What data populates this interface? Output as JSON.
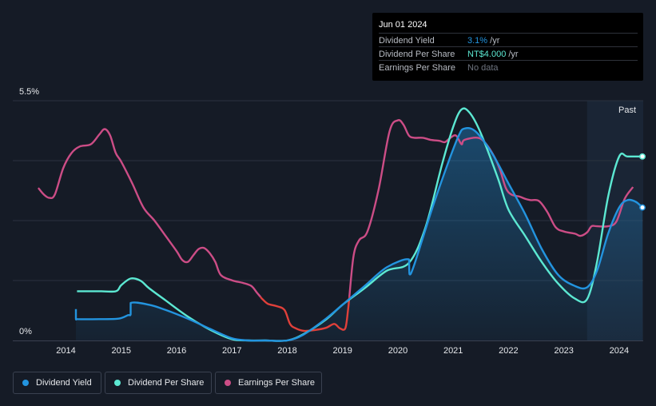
{
  "tooltip": {
    "date": "Jun 01 2024",
    "rows": [
      {
        "label": "Dividend Yield",
        "value": "3.1%",
        "unit": " /yr"
      },
      {
        "label": "Dividend Per Share",
        "value": "NT$4.000",
        "unit": " /yr"
      },
      {
        "label": "Earnings Per Share",
        "value": "No data",
        "unit": ""
      }
    ]
  },
  "colors": {
    "background": "#151b26",
    "dividend_yield": "#2394df",
    "dividend_per_share": "#5ce8d2",
    "earnings_per_share": "#cc4d86",
    "earnings_negative": "#e0403a",
    "past_region": "#1a2535"
  },
  "chart_data": {
    "type": "line",
    "title": "",
    "xlabel": "",
    "ylabel": "",
    "ylim": [
      0,
      5.5
    ],
    "xlim": [
      2013.5,
      2024.42
    ],
    "y_tick_labels": [
      "5.5%",
      "0%"
    ],
    "x_ticks": [
      2014,
      2015,
      2016,
      2017,
      2018,
      2019,
      2020,
      2021,
      2022,
      2023,
      2024
    ],
    "x_tick_labels": [
      "2014",
      "2015",
      "2016",
      "2017",
      "2018",
      "2019",
      "2020",
      "2021",
      "2022",
      "2023",
      "2024"
    ],
    "past_label": "Past",
    "past_start": 2023.42,
    "legend_position": "bottom-left",
    "series": [
      {
        "name": "Dividend Yield",
        "unit": "% yield",
        "x": [
          2014.18,
          2014.18,
          2014.2,
          2014.6,
          2014.95,
          2015.12,
          2015.17,
          2015.17,
          2015.5,
          2015.8,
          2016.2,
          2016.6,
          2017.0,
          2017.3,
          2017.6,
          2018.0,
          2018.3,
          2018.7,
          2019.0,
          2019.4,
          2019.8,
          2020.2,
          2020.21,
          2020.3,
          2020.6,
          2020.9,
          2021.1,
          2021.2,
          2021.4,
          2021.7,
          2022.0,
          2022.3,
          2022.6,
          2022.9,
          2023.2,
          2023.42,
          2023.6,
          2023.8,
          2024.0,
          2024.15,
          2024.3,
          2024.42
        ],
        "values": [
          0.72,
          0.5,
          0.49,
          0.49,
          0.5,
          0.58,
          0.6,
          0.86,
          0.82,
          0.7,
          0.5,
          0.27,
          0.05,
          0.0,
          0.0,
          0.0,
          0.14,
          0.5,
          0.82,
          1.25,
          1.68,
          1.86,
          1.52,
          1.75,
          2.95,
          4.05,
          4.7,
          4.86,
          4.8,
          4.3,
          3.6,
          2.9,
          2.1,
          1.5,
          1.25,
          1.22,
          1.6,
          2.45,
          3.05,
          3.22,
          3.18,
          3.05
        ]
      },
      {
        "name": "Dividend Per Share",
        "unit": "NT$",
        "x": [
          2014.2,
          2014.6,
          2014.9,
          2015.0,
          2015.17,
          2015.35,
          2015.5,
          2015.8,
          2016.2,
          2016.6,
          2017.0,
          2017.3,
          2017.6,
          2018.0,
          2018.3,
          2018.7,
          2019.0,
          2019.4,
          2019.8,
          2020.2,
          2020.5,
          2020.8,
          2021.0,
          2021.15,
          2021.3,
          2021.5,
          2021.8,
          2022.0,
          2022.3,
          2022.6,
          2022.9,
          2023.2,
          2023.42,
          2023.6,
          2023.8,
          2024.0,
          2024.15,
          2024.42
        ],
        "values": [
          1.13,
          1.13,
          1.13,
          1.27,
          1.42,
          1.37,
          1.2,
          0.92,
          0.55,
          0.25,
          0.03,
          0.0,
          0.0,
          0.0,
          0.15,
          0.48,
          0.82,
          1.2,
          1.6,
          1.78,
          2.6,
          4.05,
          4.9,
          5.3,
          5.22,
          4.75,
          3.75,
          3.0,
          2.4,
          1.8,
          1.3,
          0.96,
          0.95,
          1.8,
          3.3,
          4.22,
          4.22,
          4.22
        ]
      },
      {
        "name": "Earnings Per Share",
        "unit": "NT$",
        "x": [
          2013.5,
          2013.6,
          2013.7,
          2013.8,
          2013.95,
          2014.1,
          2014.25,
          2014.45,
          2014.6,
          2014.7,
          2014.8,
          2014.9,
          2015.0,
          2015.2,
          2015.4,
          2015.6,
          2015.8,
          2016.0,
          2016.1,
          2016.2,
          2016.3,
          2016.4,
          2016.5,
          2016.6,
          2016.7,
          2016.8,
          2017.0,
          2017.2,
          2017.35,
          2017.45,
          2017.55,
          2017.65,
          2017.8,
          2017.95,
          2018.05,
          2018.15,
          2018.3,
          2018.5,
          2018.7,
          2018.85,
          2018.95,
          2019.05,
          2019.1,
          2019.2,
          2019.3,
          2019.45,
          2019.65,
          2019.85,
          2020.0,
          2020.1,
          2020.2,
          2020.3,
          2020.45,
          2020.6,
          2020.75,
          2020.85,
          2020.95,
          2021.05,
          2021.15,
          2021.2,
          2021.45,
          2021.6,
          2021.75,
          2021.85,
          2021.95,
          2022.05,
          2022.2,
          2022.3,
          2022.4,
          2022.55,
          2022.7,
          2022.85,
          2023.0,
          2023.2,
          2023.3,
          2023.42,
          2023.5,
          2023.6,
          2023.8,
          2023.95,
          2024.1,
          2024.25
        ],
        "values": [
          3.5,
          3.35,
          3.27,
          3.35,
          3.95,
          4.3,
          4.45,
          4.5,
          4.72,
          4.85,
          4.7,
          4.3,
          4.1,
          3.6,
          3.05,
          2.75,
          2.4,
          2.05,
          1.85,
          1.8,
          1.95,
          2.1,
          2.12,
          2.0,
          1.8,
          1.5,
          1.38,
          1.32,
          1.25,
          1.1,
          0.95,
          0.84,
          0.79,
          0.7,
          0.38,
          0.28,
          0.22,
          0.24,
          0.29,
          0.38,
          0.28,
          0.28,
          0.72,
          1.95,
          2.3,
          2.5,
          3.45,
          4.8,
          5.05,
          4.95,
          4.7,
          4.65,
          4.65,
          4.6,
          4.58,
          4.55,
          4.65,
          4.7,
          4.5,
          4.6,
          4.65,
          4.5,
          4.2,
          3.9,
          3.5,
          3.35,
          3.3,
          3.25,
          3.22,
          3.2,
          2.95,
          2.6,
          2.5,
          2.45,
          2.4,
          2.48,
          2.62,
          2.62,
          2.62,
          2.73,
          3.25,
          3.52
        ]
      }
    ]
  },
  "legend": [
    {
      "label": "Dividend Yield"
    },
    {
      "label": "Dividend Per Share"
    },
    {
      "label": "Earnings Per Share"
    }
  ]
}
